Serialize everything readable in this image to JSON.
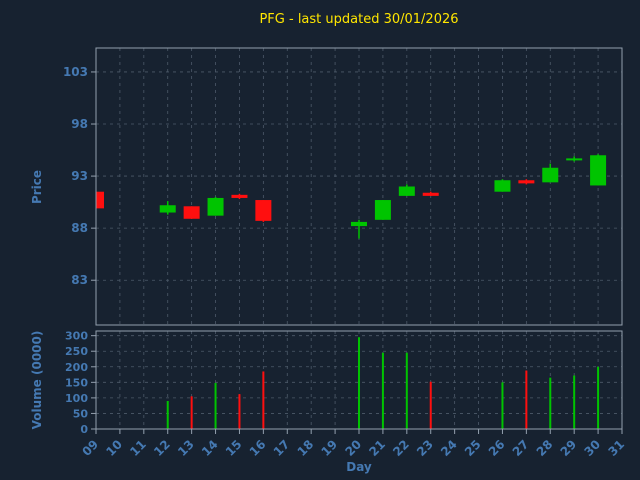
{
  "title": "PFG - last updated 30/01/2026",
  "colors": {
    "background": "#172230",
    "title": "#ffe600",
    "text": "#4579b2",
    "grid": "#7a8899",
    "frame": "#93a0ae",
    "up": "#00c400",
    "down": "#ff0f0f"
  },
  "chart_data": {
    "type": "candlestick+volume",
    "title": "PFG - last updated 30/01/2026",
    "xlabel": "Day",
    "price_ylabel": "Price",
    "volume_ylabel": "Volume (0000)",
    "x_ticks": [
      9,
      10,
      11,
      12,
      13,
      14,
      15,
      16,
      17,
      18,
      19,
      20,
      21,
      22,
      23,
      24,
      25,
      26,
      27,
      28,
      29,
      30,
      31
    ],
    "x_tick_labels": [
      "09",
      "10",
      "11",
      "12",
      "13",
      "14",
      "15",
      "16",
      "17",
      "18",
      "19",
      "20",
      "21",
      "22",
      "23",
      "24",
      "25",
      "26",
      "27",
      "28",
      "29",
      "30",
      "31"
    ],
    "x_range": [
      9,
      31
    ],
    "price_ticks": [
      83,
      88,
      93,
      98,
      103
    ],
    "price_ylim": [
      78.7,
      105.3
    ],
    "volume_ticks": [
      0,
      50,
      100,
      150,
      200,
      250,
      300
    ],
    "volume_ylim": [
      0,
      315
    ],
    "grid": "dashed",
    "candles": [
      {
        "day": 9,
        "open": 91.5,
        "high": 91.5,
        "low": 89.9,
        "close": 89.9,
        "volume": null
      },
      {
        "day": 12,
        "open": 89.5,
        "high": 90.6,
        "low": 89.3,
        "close": 90.2,
        "volume": 90
      },
      {
        "day": 13,
        "open": 90.1,
        "high": 90.1,
        "low": 88.9,
        "close": 88.9,
        "volume": 105
      },
      {
        "day": 14,
        "open": 89.2,
        "high": 91.0,
        "low": 89.2,
        "close": 90.9,
        "volume": 148
      },
      {
        "day": 15,
        "open": 91.2,
        "high": 91.3,
        "low": 90.8,
        "close": 90.9,
        "volume": 112
      },
      {
        "day": 16,
        "open": 90.7,
        "high": 90.7,
        "low": 88.6,
        "close": 88.7,
        "volume": 185
      },
      {
        "day": 20,
        "open": 88.2,
        "high": 88.8,
        "low": 87.0,
        "close": 88.6,
        "volume": 295
      },
      {
        "day": 21,
        "open": 88.8,
        "high": 90.7,
        "low": 88.8,
        "close": 90.7,
        "volume": 245
      },
      {
        "day": 22,
        "open": 91.1,
        "high": 92.2,
        "low": 91.1,
        "close": 92.0,
        "volume": 245
      },
      {
        "day": 23,
        "open": 91.4,
        "high": 91.5,
        "low": 91.1,
        "close": 91.1,
        "volume": 152
      },
      {
        "day": 26,
        "open": 91.5,
        "high": 92.7,
        "low": 91.5,
        "close": 92.6,
        "volume": 150
      },
      {
        "day": 27,
        "open": 92.6,
        "high": 92.7,
        "low": 92.2,
        "close": 92.3,
        "volume": 188
      },
      {
        "day": 28,
        "open": 92.4,
        "high": 94.2,
        "low": 92.4,
        "close": 93.8,
        "volume": 165
      },
      {
        "day": 29,
        "open": 94.6,
        "high": 94.9,
        "low": 94.4,
        "close": 94.7,
        "volume": 172
      },
      {
        "day": 30,
        "open": 92.1,
        "high": 95.1,
        "low": 92.1,
        "close": 95.0,
        "volume": 200
      }
    ]
  }
}
